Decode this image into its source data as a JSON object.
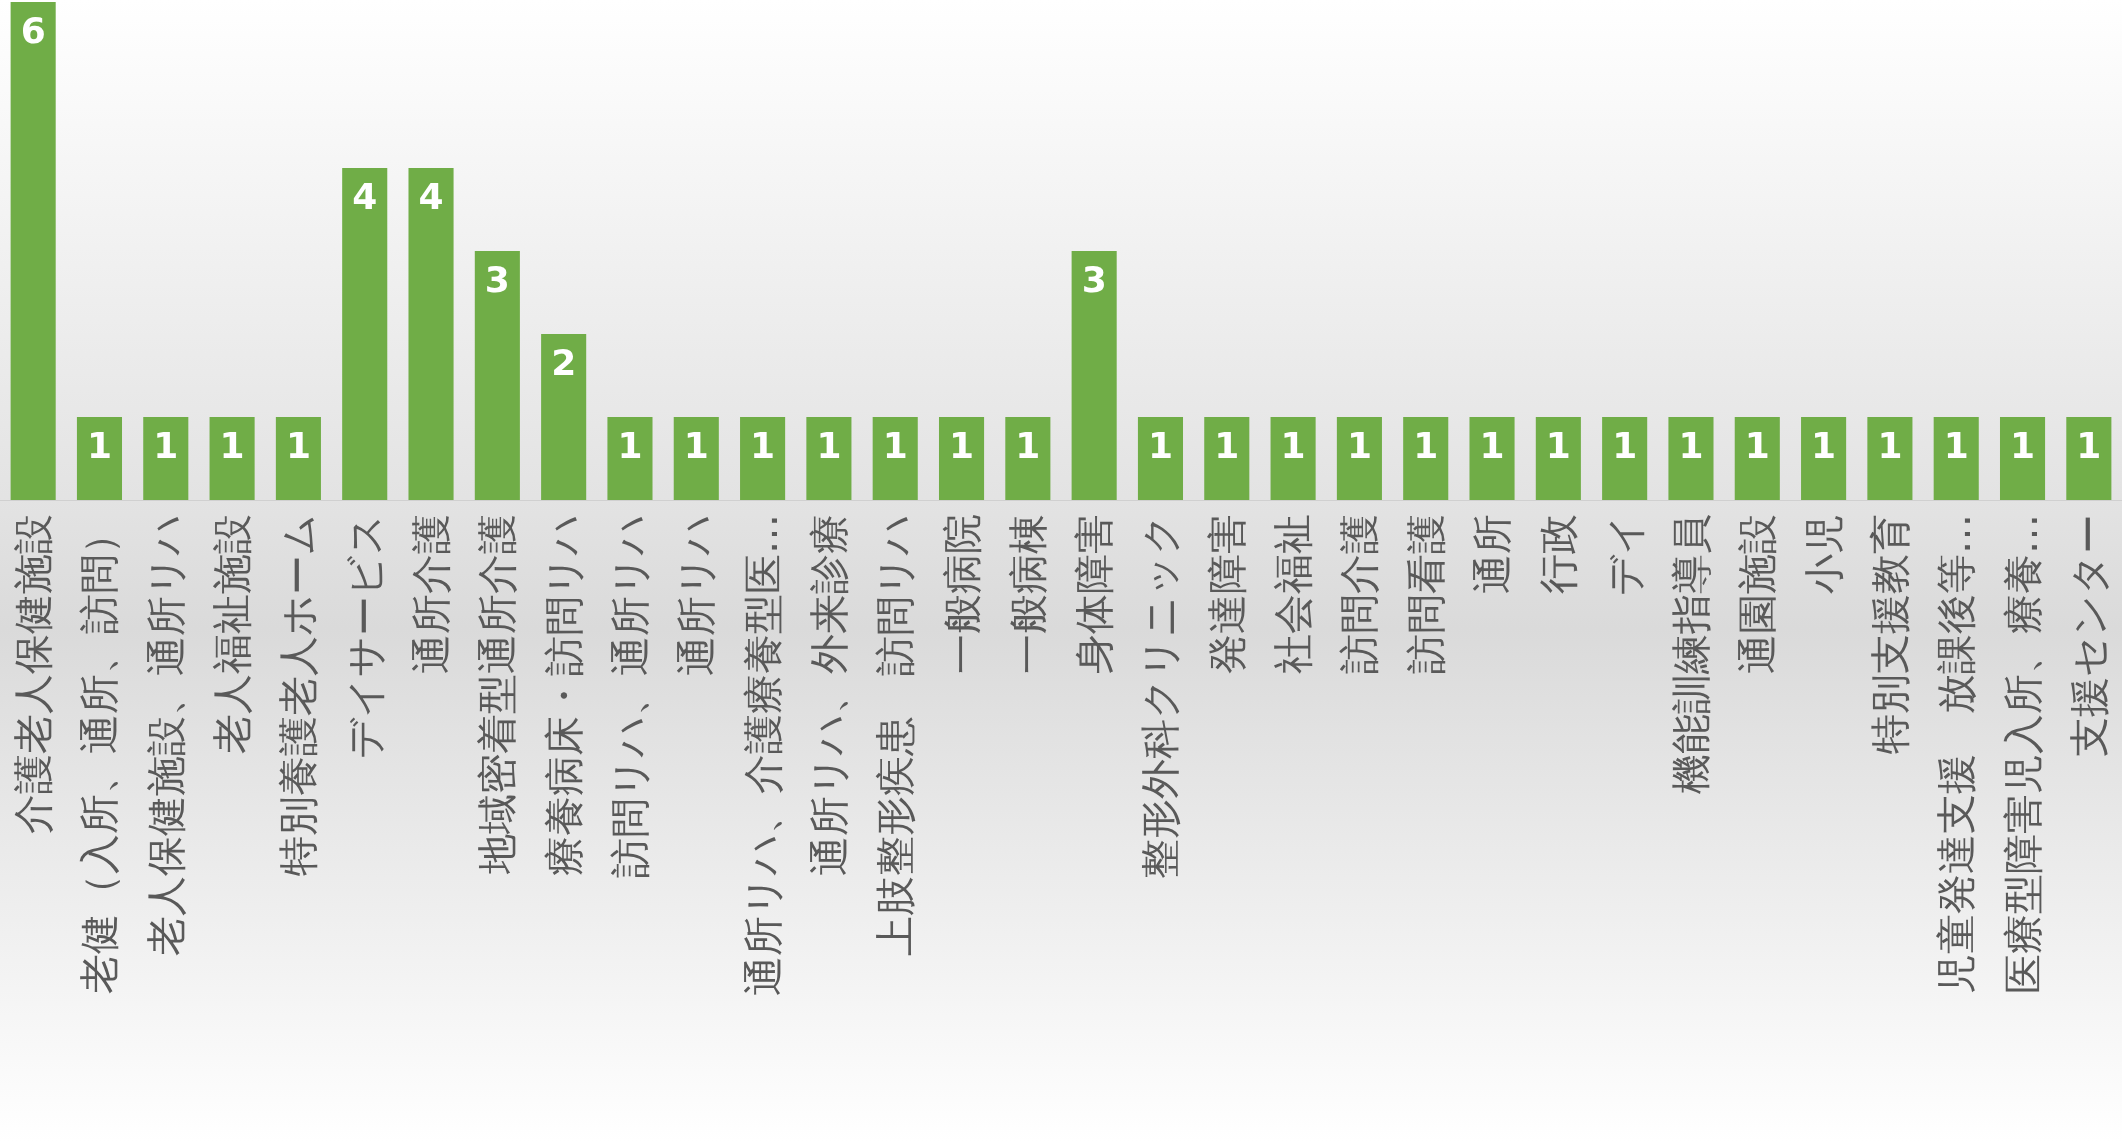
{
  "chart_data": {
    "type": "bar",
    "categories": [
      "介護老人保健施設",
      "老健（入所、通所、訪問）",
      "老人保健施設、通所リハ",
      "老人福祉施設",
      "特別養護老人ホーム",
      "デイサービス",
      "通所介護",
      "地域密着型通所介護",
      "療養病床・訪問リハ",
      "訪問リハ、通所リハ",
      "通所リハ",
      "通所リハ、介護療養型医…",
      "通所リハ、外来診療",
      "上肢整形疾患　訪問リハ",
      "一般病院",
      "一般病棟",
      "身体障害",
      "整形外科クリニック",
      "発達障害",
      "社会福祉",
      "訪問介護",
      "訪問看護",
      "通所",
      "行政",
      "デイ",
      "機能訓練指導員",
      "通園施設",
      "小児",
      "特別支援教育",
      "児童発達支援　放課後等…",
      "医療型障害児入所、療養…",
      "支援センター"
    ],
    "values": [
      6,
      1,
      1,
      1,
      1,
      4,
      4,
      3,
      2,
      1,
      1,
      1,
      1,
      1,
      1,
      1,
      3,
      1,
      1,
      1,
      1,
      1,
      1,
      1,
      1,
      1,
      1,
      1,
      1,
      1,
      1,
      1
    ],
    "color": "#70ad47",
    "data_labels": true
  }
}
